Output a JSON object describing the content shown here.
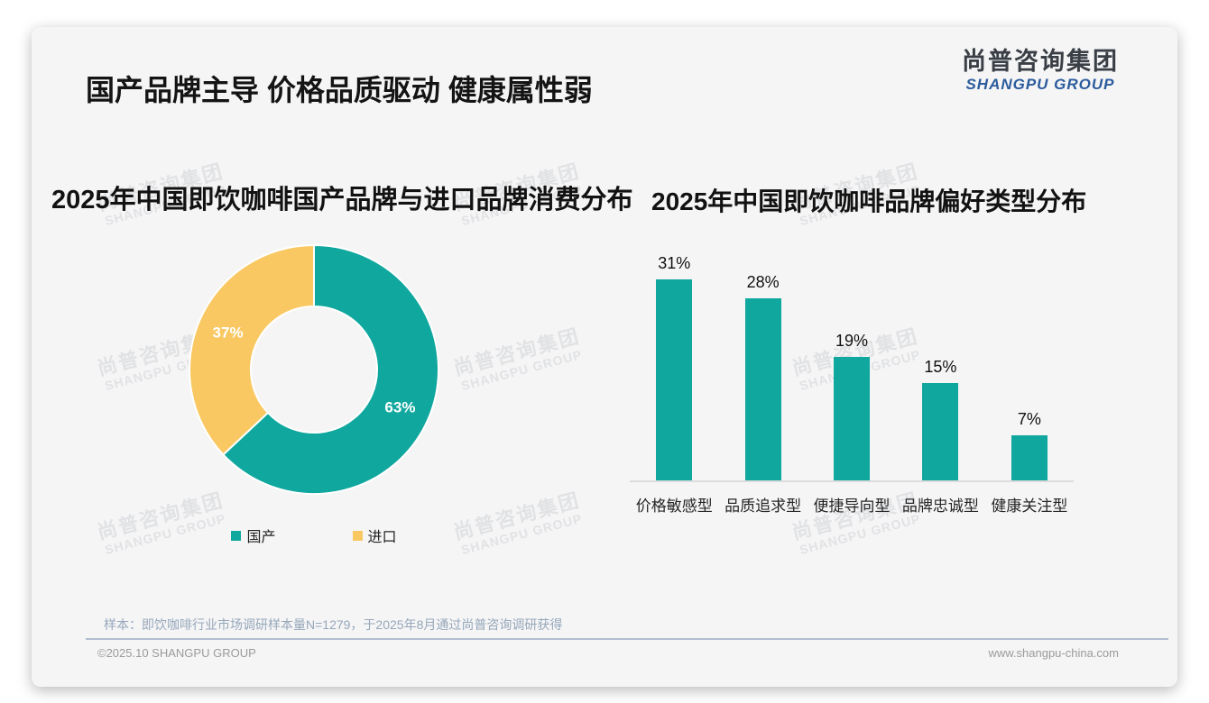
{
  "page": {
    "title": "国产品牌主导 价格品质驱动 健康属性弱",
    "logo": {
      "cn": "尚普咨询集团",
      "en": "SHANGPU GROUP"
    },
    "watermark": {
      "line1": "尚普咨询集团",
      "line2": "SHANGPU GROUP"
    },
    "note": "样本：即饮咖啡行业市场调研样本量N=1279，于2025年8月通过尚普咨询调研获得",
    "footer": {
      "left": "©2025.10 SHANGPU GROUP",
      "right": "www.shangpu-china.com"
    }
  },
  "colors": {
    "teal": "#0FA79E",
    "yellow": "#F9C862",
    "title_text": "#141414",
    "logo_blue": "#2b5c9c",
    "note_text": "#96a7ba",
    "footer_text": "#9b9b9b",
    "card_bg": "#f5f5f6"
  },
  "chart_data": [
    {
      "type": "pie",
      "title": "2025年中国即饮咖啡国产品牌与进口品牌消费分布",
      "labels": [
        "国产",
        "进口"
      ],
      "values": [
        63,
        37
      ],
      "value_labels": [
        "63%",
        "37%"
      ],
      "colors": [
        "#0FA79E",
        "#F9C862"
      ],
      "donut": true,
      "start_angle": "12 o'clock, clockwise",
      "legend_position": "bottom"
    },
    {
      "type": "bar",
      "title": "2025年中国即饮咖啡品牌偏好类型分布",
      "categories": [
        "价格敏感型",
        "品质追求型",
        "便捷导向型",
        "品牌忠诚型",
        "健康关注型"
      ],
      "values": [
        31,
        28,
        19,
        15,
        7
      ],
      "value_labels": [
        "31%",
        "28%",
        "19%",
        "15%",
        "7%"
      ],
      "bar_color": "#0FA79E",
      "ylim": [
        0,
        35
      ],
      "grid": false,
      "value_axis_visible": false
    }
  ]
}
